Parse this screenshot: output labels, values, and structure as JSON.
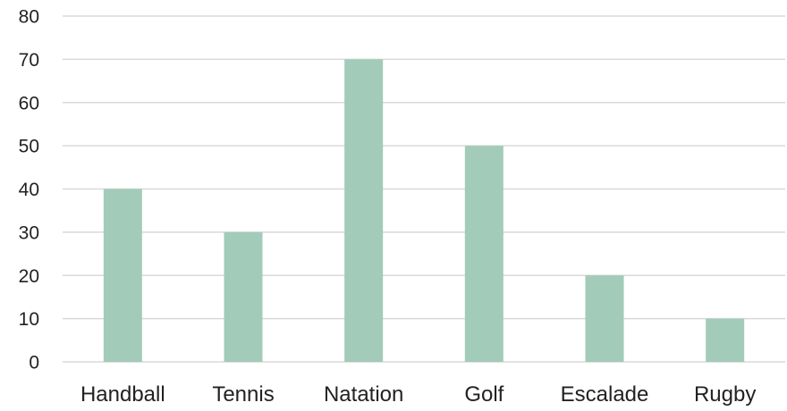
{
  "chart_data": {
    "type": "bar",
    "categories": [
      "Handball",
      "Tennis",
      "Natation",
      "Golf",
      "Escalade",
      "Rugby"
    ],
    "values": [
      40,
      30,
      70,
      50,
      20,
      10
    ],
    "title": "",
    "xlabel": "",
    "ylabel": "",
    "ylim": [
      0,
      80
    ],
    "yticks": [
      "0",
      "10",
      "20",
      "30",
      "40",
      "50",
      "60",
      "70",
      "80"
    ],
    "grid": true,
    "legend": "none",
    "bar_color": "#a2cbb9"
  }
}
